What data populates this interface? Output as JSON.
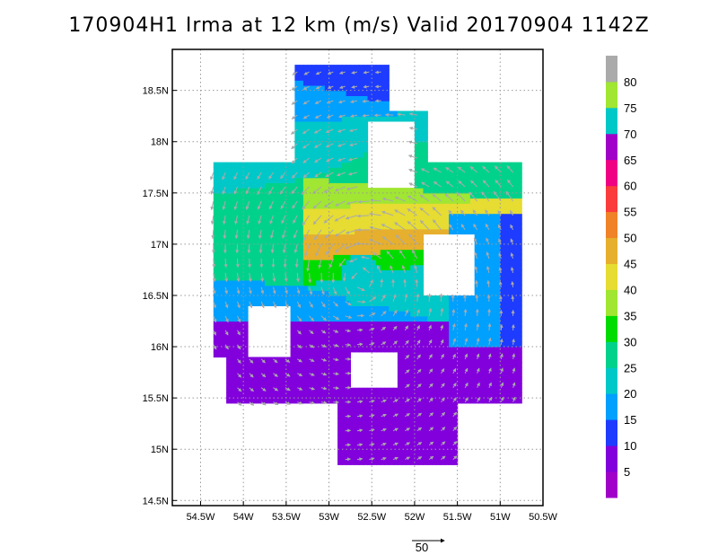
{
  "title": "170904H1 Irma at 12 km (m/s) Valid 20170904 1142Z",
  "chart_data": {
    "type": "heatmap",
    "title": "170904H1 Irma at 12 km (m/s) Valid 20170904 1142Z",
    "variable_units": "m/s",
    "xlim": [
      -54.83,
      -50.5
    ],
    "ylim": [
      14.45,
      18.9
    ],
    "x_ticks": [
      -54.5,
      -54,
      -53.5,
      -53,
      -52.5,
      -52,
      -51.5,
      -51,
      -50.5
    ],
    "x_tick_labels": [
      "54.5W",
      "54W",
      "53.5W",
      "53W",
      "52.5W",
      "52W",
      "51.5W",
      "51W",
      "50.5W"
    ],
    "y_ticks": [
      14.5,
      15,
      15.5,
      16,
      16.5,
      17,
      17.5,
      18,
      18.5
    ],
    "y_tick_labels": [
      "14.5N",
      "15N",
      "15.5N",
      "16N",
      "16.5N",
      "17N",
      "17.5N",
      "18N",
      "18.5N"
    ],
    "grid": true,
    "center": {
      "lon": -52.62,
      "lat": 16.65
    },
    "colorbar": {
      "labels": [
        "5",
        "10",
        "15",
        "20",
        "25",
        "30",
        "35",
        "40",
        "45",
        "50",
        "55",
        "60",
        "65",
        "70",
        "75",
        "80"
      ],
      "colors": [
        "#a000c8",
        "#8200dc",
        "#1e3cff",
        "#00a0ff",
        "#00c8c8",
        "#00d28c",
        "#00dc00",
        "#a0e632",
        "#e6dc32",
        "#e6af2d",
        "#f08228",
        "#fa3c3c",
        "#f00082",
        "#a000c8",
        "#00c8c8",
        "#a0e632",
        "#aaaaaa"
      ]
    },
    "wind_regions": [
      {
        "lat": 18.62,
        "speed": 10,
        "lons": [
          -53.2,
          -52.3
        ]
      },
      {
        "lat": 18.35,
        "speed": 15,
        "lons": [
          -53.4,
          -52.4
        ]
      },
      {
        "lat": 18.1,
        "speed": 20,
        "lons": [
          -53.35,
          -52.35
        ]
      },
      {
        "lat": 17.9,
        "speed": 20,
        "lons": [
          -53.5,
          -52.3
        ]
      },
      {
        "lat": 17.7,
        "speed": 25,
        "lons": [
          -53.2,
          -52.2
        ]
      },
      {
        "lat": 17.5,
        "speed": 35,
        "lons": [
          -53.1,
          -52.4
        ]
      },
      {
        "lat": 17.25,
        "speed": 40,
        "lons": [
          -53.0,
          -52.45
        ]
      },
      {
        "lat": 17.0,
        "speed": 45,
        "lons": [
          -52.9,
          -52.5
        ]
      },
      {
        "lat": 16.8,
        "speed": 30,
        "lons": [
          -53.3,
          -52.0
        ]
      },
      {
        "lat": 16.6,
        "speed": 20,
        "lons": [
          -52.75,
          -52.4
        ]
      },
      {
        "lat": 16.3,
        "speed": 15,
        "lons": [
          -53.5,
          -52.0
        ]
      },
      {
        "lat": 15.7,
        "speed": 5,
        "lons": [
          -54.2,
          -51.3
        ]
      },
      {
        "lat": 15.2,
        "speed": 5,
        "lons": [
          -52.8,
          -51.6
        ]
      }
    ],
    "reference_vector": {
      "label": "50",
      "speed": 50
    }
  }
}
